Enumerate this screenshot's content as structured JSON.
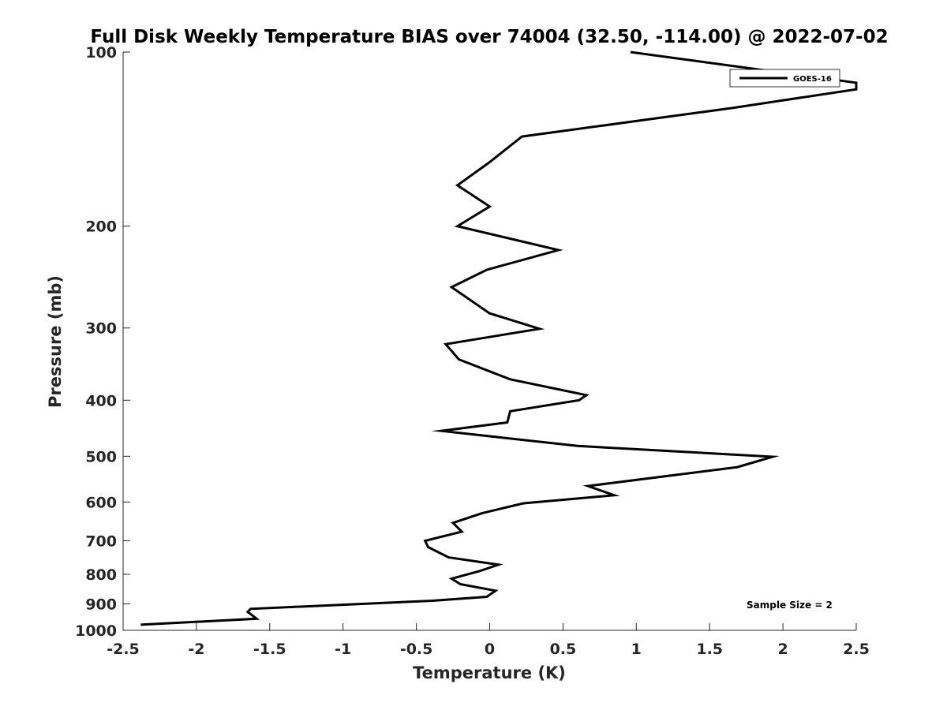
{
  "chart_data": {
    "type": "line",
    "title": "Full Disk Weekly Temperature BIAS over 74004 (32.50, -114.00) @ 2022-07-02",
    "xlabel": "Temperature (K)",
    "ylabel": "Pressure (mb)",
    "xlim": [
      -2.5,
      2.5
    ],
    "ylim": [
      1000,
      100
    ],
    "y_scale": "log",
    "y_reversed": true,
    "x_ticks": [
      "-2.5",
      "-2",
      "-1.5",
      "-1",
      "-0.5",
      "0",
      "0.5",
      "1",
      "1.5",
      "2",
      "2.5"
    ],
    "y_ticks": [
      "100",
      "200",
      "300",
      "400",
      "500",
      "600",
      "700",
      "800",
      "900",
      "1000"
    ],
    "grid": false,
    "legend_placement": "top-right",
    "annotation": "Sample Size = 2",
    "series": [
      {
        "name": "GOES-16",
        "color": "#000000",
        "points": [
          [
            0.96,
            100
          ],
          [
            2.5,
            113
          ],
          [
            2.5,
            116
          ],
          [
            1.65,
            125
          ],
          [
            0.22,
            140
          ],
          [
            0.0,
            155
          ],
          [
            -0.22,
            170
          ],
          [
            0.0,
            185
          ],
          [
            -0.22,
            200
          ],
          [
            0.47,
            220
          ],
          [
            -0.02,
            238
          ],
          [
            -0.26,
            255
          ],
          [
            0.0,
            283
          ],
          [
            0.34,
            301
          ],
          [
            -0.3,
            320
          ],
          [
            -0.21,
            340
          ],
          [
            0.14,
            368
          ],
          [
            0.66,
            392
          ],
          [
            0.61,
            400
          ],
          [
            0.14,
            418
          ],
          [
            0.12,
            437
          ],
          [
            -0.33,
            452
          ],
          [
            0.6,
            480
          ],
          [
            1.93,
            501
          ],
          [
            1.69,
            522
          ],
          [
            0.67,
            563
          ],
          [
            0.85,
            584
          ],
          [
            0.23,
            603
          ],
          [
            -0.05,
            627
          ],
          [
            -0.25,
            652
          ],
          [
            -0.19,
            675
          ],
          [
            -0.44,
            700
          ],
          [
            -0.42,
            718
          ],
          [
            -0.28,
            748
          ],
          [
            0.06,
            770
          ],
          [
            -0.07,
            790
          ],
          [
            -0.26,
            814
          ],
          [
            -0.2,
            832
          ],
          [
            0.04,
            854
          ],
          [
            -0.02,
            875
          ],
          [
            -0.39,
            889
          ],
          [
            -1.63,
            918
          ],
          [
            -1.65,
            929
          ],
          [
            -1.59,
            955
          ],
          [
            -2.38,
            978
          ]
        ]
      }
    ]
  }
}
